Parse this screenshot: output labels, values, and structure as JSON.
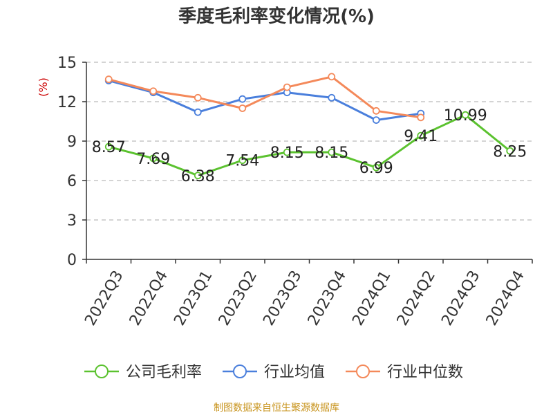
{
  "chart_data": {
    "type": "line",
    "title": "季度毛利率变化情况(%)",
    "ylabel": "(%)",
    "xlabel": "",
    "ylim": [
      0,
      15
    ],
    "yticks": [
      0,
      3,
      6,
      9,
      12,
      15
    ],
    "categories": [
      "2022Q3",
      "2022Q4",
      "2023Q1",
      "2023Q2",
      "2023Q3",
      "2023Q4",
      "2024Q1",
      "2024Q2",
      "2024Q3",
      "2024Q4"
    ],
    "grid": true,
    "legend_position": "bottom",
    "series": [
      {
        "name": "公司毛利率",
        "color": "#5bc22f",
        "values": [
          8.57,
          7.69,
          6.38,
          7.54,
          8.15,
          8.15,
          6.99,
          9.41,
          10.99,
          8.25
        ],
        "labels": [
          "8.57",
          "7.69",
          "6.38",
          "7.54",
          "8.15",
          "8.15",
          "6.99",
          "9.41",
          "10.99",
          "8.25"
        ]
      },
      {
        "name": "行业均值",
        "color": "#4a7fdc",
        "values": [
          13.6,
          12.7,
          11.2,
          12.2,
          12.7,
          12.3,
          10.6,
          11.1,
          null,
          null
        ]
      },
      {
        "name": "行业中位数",
        "color": "#f4895a",
        "values": [
          13.7,
          12.8,
          12.3,
          11.5,
          13.1,
          13.9,
          11.3,
          10.8,
          null,
          null
        ]
      }
    ]
  },
  "source": "制图数据来自恒生聚源数据库"
}
